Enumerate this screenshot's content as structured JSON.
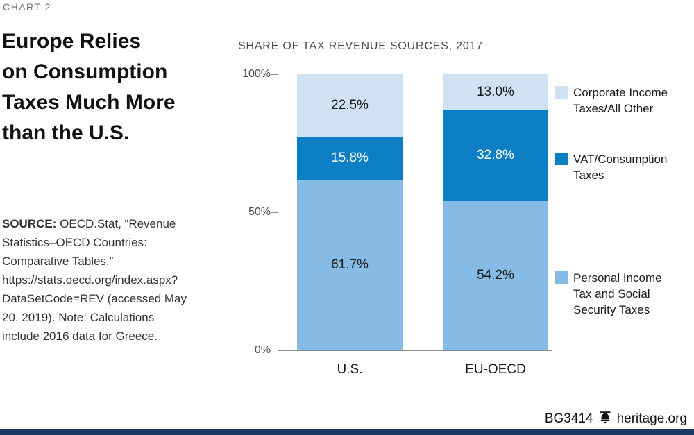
{
  "page": {
    "kicker": "CHART 2",
    "title": "Europe Relies\non Consumption\nTaxes Much More\nthan the U.S.",
    "source_label": "SOURCE:",
    "source_text": " OECD.Stat, “Revenue\nStatistics–OECD Countries:\nComparative Tables,”\nhttps://stats.oecd.org/index.aspx?\nDataSetCode=REV (accessed May\n20, 2019). Note: Calculations\ninclude 2016 data for Greece.",
    "footer": {
      "id": "BG3414",
      "site": "heritage.org"
    },
    "footer_bar_color": "#1c3a64"
  },
  "chart_data": {
    "type": "bar",
    "stacked": true,
    "title": "SHARE OF TAX REVENUE SOURCES, 2017",
    "categories": [
      "U.S.",
      "EU-OECD"
    ],
    "series": [
      {
        "name": "Personal Income Tax and Social Security Taxes",
        "values": [
          61.7,
          54.2
        ],
        "labels": [
          "61.7%",
          "54.2%"
        ],
        "color": "#85bbe4",
        "label_color": "#1a1a1a"
      },
      {
        "name": "VAT/Consumption Taxes",
        "values": [
          15.8,
          32.8
        ],
        "labels": [
          "15.8%",
          "32.8%"
        ],
        "color": "#0b7ec4",
        "label_color": "#ffffff"
      },
      {
        "name": "Corporate Income Taxes/All Other",
        "values": [
          22.5,
          13.0
        ],
        "labels": [
          "22.5%",
          "13.0%"
        ],
        "color": "#cfe2f4",
        "label_color": "#1a1a1a"
      }
    ],
    "yticks": [
      "100%",
      "50%",
      "0%"
    ],
    "ylim": [
      0,
      100
    ],
    "grid": false,
    "legend_position": "right"
  },
  "legend": {
    "items": [
      {
        "label": "Corporate Income\nTaxes/All Other",
        "color": "#cfe2f4"
      },
      {
        "label": "VAT/Consumption\nTaxes",
        "color": "#0b7ec4"
      },
      {
        "label": "Personal Income\nTax and Social\nSecurity Taxes",
        "color": "#85bbe4"
      }
    ]
  }
}
